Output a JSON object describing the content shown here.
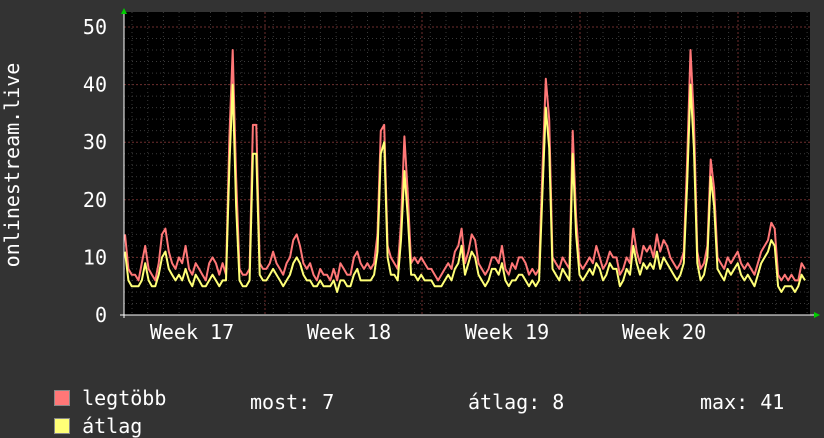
{
  "chart_data": {
    "type": "line",
    "ylabel": "onlinestream.live",
    "ylim": [
      0,
      50
    ],
    "yticks": [
      0,
      10,
      20,
      30,
      40,
      50
    ],
    "xticks": [
      "Week 17",
      "Week 18",
      "Week 19",
      "Week 20"
    ],
    "grid": true,
    "series": [
      {
        "name": "legtöbb",
        "color": "#ff7777",
        "values": [
          14,
          8,
          7,
          7,
          6,
          9,
          12,
          8,
          7,
          6,
          9,
          14,
          15,
          11,
          9,
          8,
          10,
          9,
          12,
          8,
          7,
          9,
          8,
          7,
          6,
          9,
          10,
          9,
          7,
          9,
          7,
          31,
          46,
          24,
          8,
          7,
          7,
          8,
          33,
          33,
          9,
          8,
          8,
          9,
          11,
          9,
          8,
          7,
          9,
          10,
          13,
          14,
          12,
          9,
          8,
          9,
          7,
          6,
          8,
          7,
          7,
          6,
          8,
          6,
          9,
          8,
          7,
          7,
          10,
          11,
          9,
          8,
          9,
          8,
          9,
          14,
          32,
          33,
          12,
          10,
          9,
          8,
          16,
          31,
          21,
          9,
          10,
          9,
          10,
          9,
          8,
          8,
          7,
          6,
          7,
          8,
          9,
          8,
          11,
          12,
          15,
          9,
          11,
          14,
          13,
          9,
          8,
          7,
          8,
          10,
          10,
          9,
          12,
          8,
          7,
          9,
          8,
          10,
          10,
          9,
          7,
          8,
          7,
          8,
          25,
          41,
          34,
          10,
          9,
          8,
          10,
          9,
          8,
          32,
          17,
          9,
          8,
          9,
          10,
          9,
          12,
          10,
          8,
          9,
          11,
          10,
          10,
          7,
          8,
          10,
          9,
          15,
          11,
          9,
          12,
          11,
          12,
          10,
          14,
          11,
          13,
          12,
          10,
          9,
          8,
          9,
          11,
          27,
          46,
          34,
          11,
          8,
          9,
          12,
          27,
          22,
          10,
          9,
          8,
          10,
          9,
          10,
          11,
          9,
          8,
          9,
          8,
          7,
          9,
          11,
          12,
          13,
          16,
          15,
          7,
          6,
          7,
          6,
          7,
          6,
          6,
          9,
          8
        ]
      },
      {
        "name": "átlag",
        "color": "#ffff77",
        "values": [
          11,
          6,
          5,
          5,
          5,
          6,
          9,
          6,
          5,
          5,
          7,
          10,
          11,
          8,
          7,
          6,
          7,
          6,
          8,
          6,
          5,
          7,
          6,
          5,
          5,
          6,
          7,
          6,
          5,
          6,
          6,
          26,
          40,
          19,
          6,
          5,
          5,
          6,
          28,
          28,
          7,
          6,
          6,
          7,
          8,
          7,
          6,
          5,
          6,
          7,
          9,
          10,
          9,
          7,
          6,
          6,
          5,
          5,
          6,
          5,
          5,
          5,
          6,
          4,
          6,
          6,
          5,
          5,
          7,
          8,
          6,
          6,
          6,
          6,
          7,
          11,
          28,
          30,
          10,
          7,
          7,
          6,
          13,
          25,
          17,
          7,
          7,
          6,
          7,
          6,
          6,
          6,
          5,
          5,
          5,
          6,
          7,
          6,
          8,
          9,
          12,
          7,
          9,
          11,
          10,
          7,
          6,
          5,
          6,
          8,
          8,
          7,
          9,
          6,
          5,
          6,
          6,
          7,
          7,
          6,
          5,
          6,
          5,
          6,
          21,
          36,
          29,
          8,
          7,
          6,
          8,
          7,
          6,
          28,
          14,
          7,
          6,
          7,
          8,
          7,
          9,
          8,
          6,
          7,
          9,
          8,
          8,
          5,
          6,
          8,
          7,
          12,
          9,
          7,
          9,
          8,
          9,
          8,
          11,
          8,
          10,
          9,
          8,
          7,
          6,
          7,
          9,
          23,
          40,
          29,
          9,
          6,
          7,
          10,
          24,
          19,
          8,
          7,
          6,
          8,
          7,
          8,
          9,
          7,
          6,
          7,
          6,
          5,
          7,
          9,
          10,
          11,
          13,
          12,
          5,
          4,
          5,
          5,
          5,
          4,
          5,
          7,
          6
        ]
      }
    ]
  },
  "legend": [
    {
      "label": "legtöbb",
      "color": "#ff7777"
    },
    {
      "label": "átlag",
      "color": "#ffff77"
    }
  ],
  "stats": {
    "now": "most: 7",
    "avg": "átlag: 8",
    "max": "max: 41"
  }
}
